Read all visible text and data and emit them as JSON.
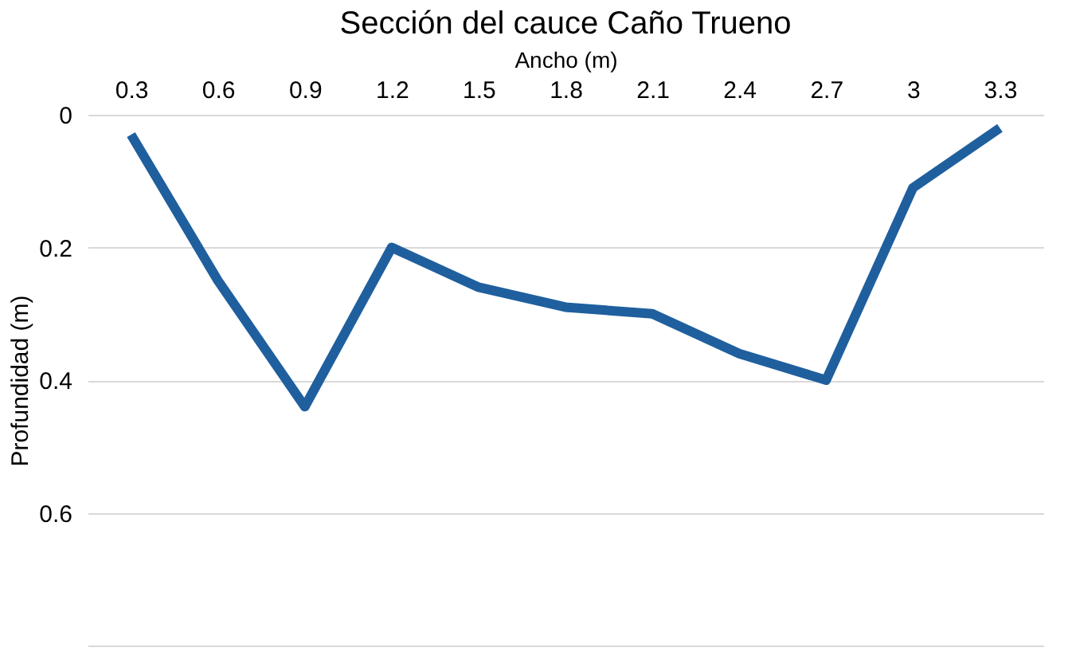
{
  "chart_data": {
    "type": "line",
    "title": "Sección del cauce Caño Trueno",
    "xlabel": "Ancho (m)",
    "ylabel": "Profundidad (m)",
    "categories": [
      "0.3",
      "0.6",
      "0.9",
      "1.2",
      "1.5",
      "1.8",
      "2.1",
      "2.4",
      "2.7",
      "3",
      "3.3"
    ],
    "series": [
      {
        "color": "#1f5f9e",
        "values": [
          0.03,
          0.25,
          0.44,
          0.2,
          0.26,
          0.29,
          0.3,
          0.36,
          0.4,
          0.11,
          0.02
        ]
      }
    ],
    "ylim": [
      0.8,
      0
    ],
    "yticks": [
      0,
      0.2,
      0.4,
      0.6,
      {
        "value": 0.8,
        "label": null
      }
    ],
    "grid": "y",
    "marker": "none"
  }
}
